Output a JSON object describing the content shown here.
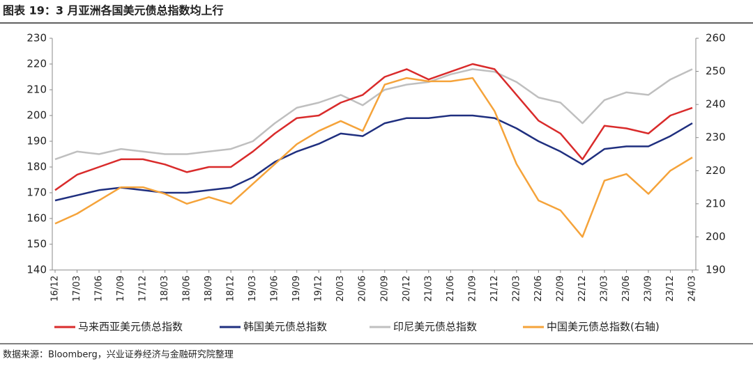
{
  "chart_data": {
    "type": "line",
    "title": "图表 19：3 月亚洲各国美元债总指数均上行",
    "source": "数据来源：Bloomberg，兴业证券经济与金融研究院整理",
    "categories": [
      "16/12",
      "17/03",
      "17/06",
      "17/09",
      "17/12",
      "18/03",
      "18/06",
      "18/09",
      "18/12",
      "19/03",
      "19/06",
      "19/09",
      "19/12",
      "20/03",
      "20/06",
      "20/09",
      "20/12",
      "21/03",
      "21/06",
      "21/09",
      "21/12",
      "22/03",
      "22/06",
      "22/09",
      "22/12",
      "23/03",
      "23/06",
      "23/09",
      "23/12",
      "24/03"
    ],
    "series": [
      {
        "name": "马来西亚美元债总指数",
        "color": "#d92b2b",
        "values": [
          171,
          177,
          180,
          183,
          183,
          181,
          178,
          180,
          180,
          186,
          193,
          199,
          200,
          205,
          208,
          215,
          218,
          214,
          217,
          220,
          218,
          208,
          198,
          193,
          183,
          196,
          195,
          193,
          200,
          203
        ]
      },
      {
        "name": "韩国美元债总指数",
        "color": "#1f2f7f",
        "values": [
          167,
          169,
          171,
          172,
          171,
          170,
          170,
          171,
          172,
          176,
          182,
          186,
          189,
          193,
          192,
          197,
          199,
          199,
          200,
          200,
          199,
          195,
          190,
          186,
          181,
          187,
          188,
          188,
          192,
          197
        ]
      },
      {
        "name": "印尼美元债总指数",
        "color": "#bfbfbf",
        "values": [
          183,
          186,
          185,
          187,
          186,
          185,
          185,
          186,
          187,
          190,
          197,
          203,
          205,
          208,
          204,
          210,
          212,
          213,
          216,
          218,
          217,
          213,
          207,
          205,
          197,
          206,
          209,
          208,
          214,
          218
        ]
      },
      {
        "name": "中国美元债总指数(右轴)",
        "color": "#f5a33a",
        "axis": "y2",
        "values": [
          204,
          207,
          211,
          215,
          215,
          213,
          210,
          212,
          210,
          216,
          222,
          228,
          232,
          235,
          232,
          246,
          248,
          247,
          247,
          248,
          238,
          222,
          211,
          208,
          200,
          217,
          219,
          213,
          220,
          224
        ]
      }
    ],
    "ylim": [
      140,
      230
    ],
    "yticks": [
      140,
      150,
      160,
      170,
      180,
      190,
      200,
      210,
      220,
      230
    ],
    "y2lim": [
      190,
      260
    ],
    "y2ticks": [
      190,
      200,
      210,
      220,
      230,
      240,
      250,
      260
    ]
  }
}
